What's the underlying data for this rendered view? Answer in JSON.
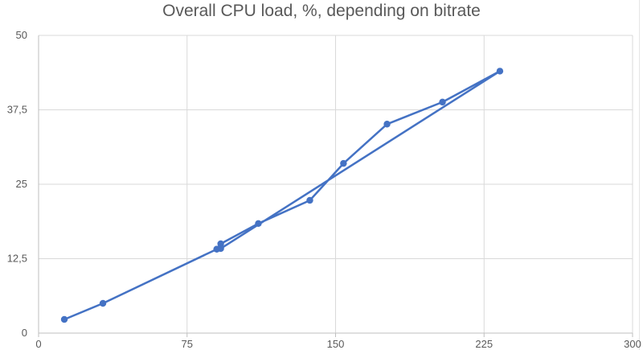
{
  "chart_data": {
    "type": "scatter",
    "title": "Overall CPU load, %, depending on bitrate",
    "xlabel": "",
    "ylabel": "",
    "xlim": [
      0,
      300
    ],
    "ylim": [
      0,
      50
    ],
    "x_ticks": [
      "0",
      "75",
      "150",
      "225",
      "300"
    ],
    "y_ticks": [
      "0",
      "12,5",
      "25",
      "37,5",
      "50"
    ],
    "grid": true,
    "legend": "none",
    "series_color": "#4472c4",
    "series": [
      {
        "values": [
          {
            "x": 13,
            "y": 2.3
          },
          {
            "x": 32.5,
            "y": 5
          },
          {
            "x": 90,
            "y": 14.1
          },
          {
            "x": 92,
            "y": 15
          },
          {
            "x": 111,
            "y": 18.4
          },
          {
            "x": 137,
            "y": 22.3
          },
          {
            "x": 154,
            "y": 28.5
          },
          {
            "x": 176,
            "y": 35.1
          },
          {
            "x": 204,
            "y": 38.8
          },
          {
            "x": 233,
            "y": 44
          },
          {
            "x": 92,
            "y": 14.2
          },
          {
            "x": 90,
            "y": 14.1
          }
        ]
      }
    ]
  }
}
